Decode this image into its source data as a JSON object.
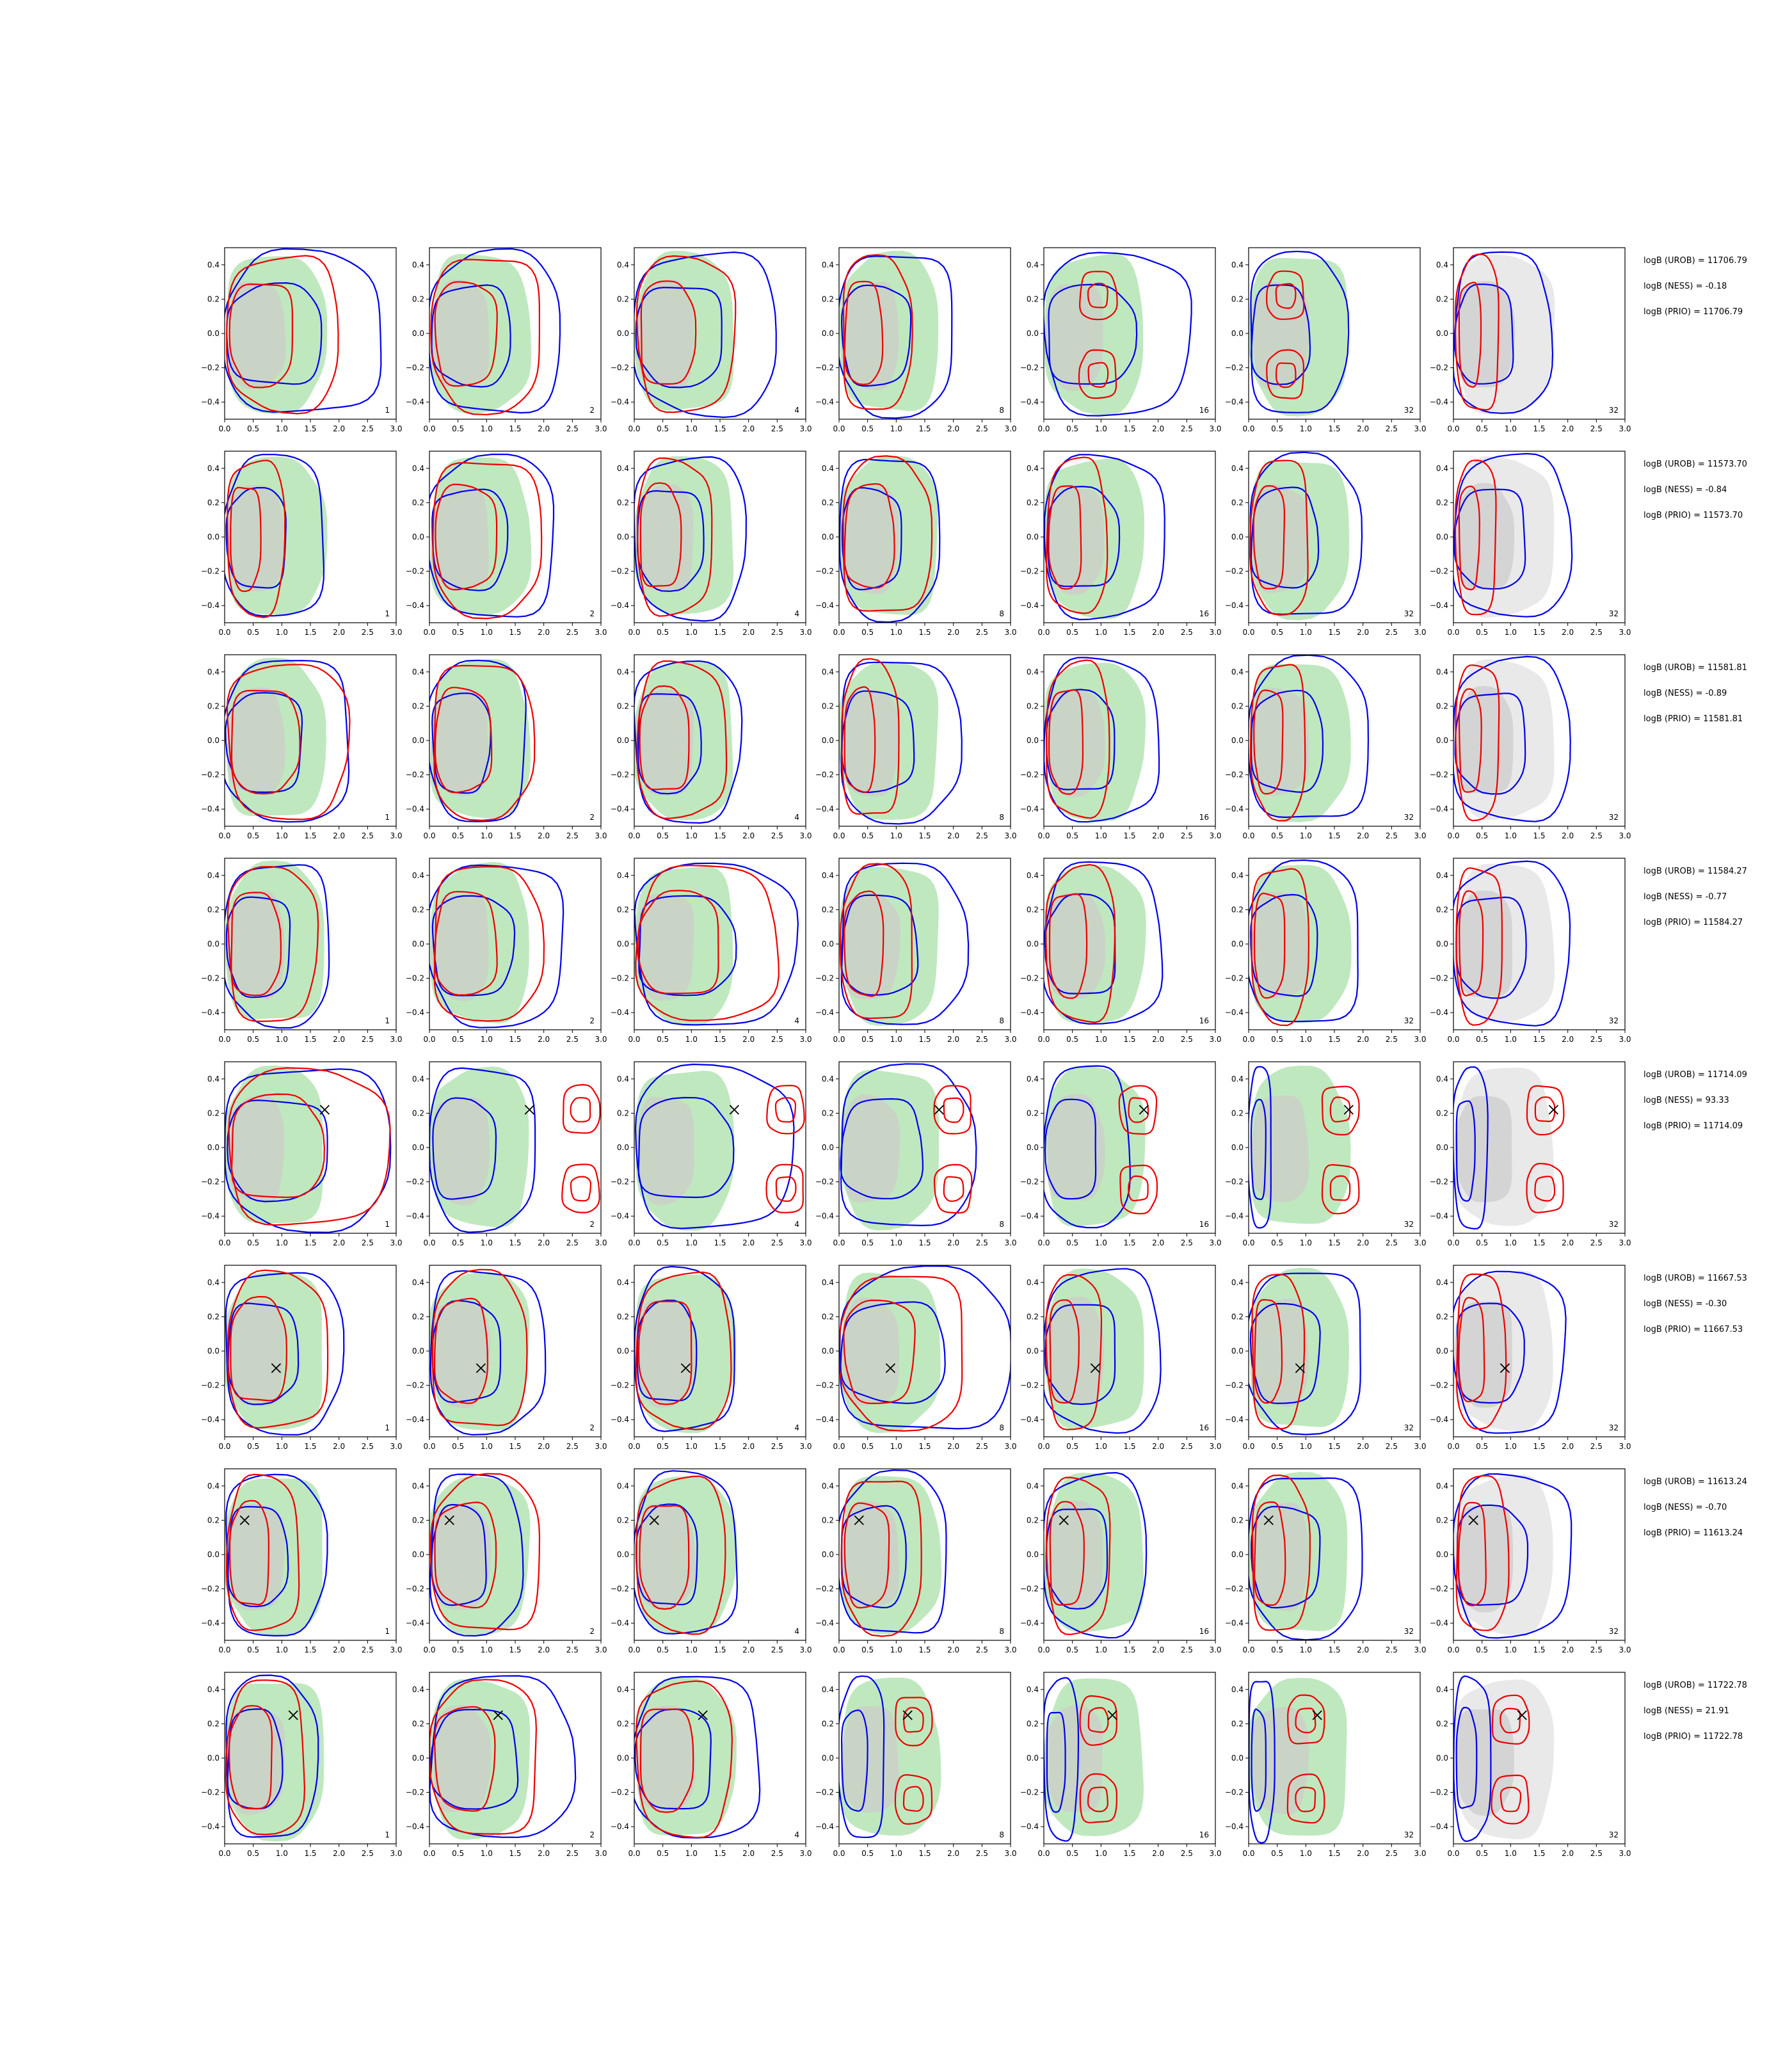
{
  "chart_data": {
    "type": "contour",
    "layout": {
      "rows": 8,
      "cols": 7
    },
    "xlim": [
      0.0,
      3.0
    ],
    "ylim": [
      -0.5,
      0.5
    ],
    "x_ticks": [
      "0.0",
      "0.5",
      "1.0",
      "1.5",
      "2.0",
      "2.5",
      "3.0"
    ],
    "y_ticks": [
      "0.4",
      "0.2",
      "0.0",
      "−0.2",
      "−0.4"
    ],
    "panel_labels": [
      "1",
      "2",
      "4",
      "8",
      "16",
      "32",
      "32"
    ],
    "colors": {
      "reference_fill_outer": "#bfe8bf",
      "reference_fill_inner": "#c9d4c6",
      "prior_fill_outer": "#e9e9e9",
      "prior_fill_inner": "#d4d4d4",
      "contour_blue": "#0000ee",
      "contour_red": "#ee0000",
      "truth_marker": "#000000"
    },
    "rows": [
      {
        "notes": [
          "logB (UROB) = 11706.79",
          "logB (NESS) = -0.18",
          "logB (PRIO) = 11706.79"
        ],
        "truth": null,
        "blue": [
          2.75,
          2.3,
          2.5,
          2.0,
          2.55,
          1.7,
          1.7
        ],
        "red": [
          2.0,
          1.95,
          1.75,
          1.25,
          1.3,
          1.0,
          0.8
        ],
        "red_mode": [
          "u",
          "u",
          "u",
          "u",
          "two",
          "two",
          "u"
        ]
      },
      {
        "notes": [
          "logB (UROB) = 11573.70",
          "logB (NESS) = -0.84",
          "logB (PRIO) = 11573.70"
        ],
        "truth": null,
        "blue": [
          1.75,
          2.2,
          1.95,
          1.75,
          2.1,
          1.95,
          2.05
        ],
        "red": [
          1.05,
          1.95,
          1.35,
          1.6,
          1.1,
          1.05,
          0.75
        ],
        "red_mode": [
          "u",
          "u",
          "u",
          "u",
          "u",
          "u",
          "u"
        ]
      },
      {
        "notes": [
          "logB (UROB) = 11581.81",
          "logB (NESS) = -0.89",
          "logB (PRIO) = 11581.81"
        ],
        "truth": null,
        "blue": [
          2.2,
          1.7,
          1.85,
          2.1,
          2.0,
          2.1,
          2.05
        ],
        "red": [
          2.15,
          1.8,
          1.6,
          1.05,
          1.15,
          1.0,
          0.8
        ],
        "red_mode": [
          "u",
          "u",
          "u",
          "u",
          "u",
          "u",
          "u"
        ]
      },
      {
        "notes": [
          "logB (UROB) = 11584.27",
          "logB (NESS) = -0.77",
          "logB (PRIO) = 11584.27"
        ],
        "truth": null,
        "blue": [
          1.85,
          2.35,
          2.8,
          2.2,
          2.05,
          1.95,
          2.05
        ],
        "red": [
          1.6,
          1.95,
          2.5,
          1.3,
          1.25,
          1.05,
          0.85
        ],
        "red_mode": [
          "u",
          "u",
          "u",
          "u",
          "u",
          "u",
          "u"
        ]
      },
      {
        "notes": [
          "logB (UROB) = 11714.09",
          "logB (NESS) = 93.33",
          "logB (PRIO) = 11714.09"
        ],
        "truth": [
          1.75,
          0.22
        ],
        "blue": [
          2.9,
          1.85,
          2.75,
          2.35,
          1.5,
          0.4,
          0.6
        ],
        "red": [
          2.85,
          3.0,
          3.0,
          2.35,
          2.0,
          1.95,
          1.95
        ],
        "red_mode": [
          "u",
          "two",
          "two",
          "two",
          "two",
          "two",
          "two"
        ]
      },
      {
        "notes": [
          "logB (UROB) = 11667.53",
          "logB (NESS) = -0.30",
          "logB (PRIO) = 11667.53"
        ],
        "truth": [
          0.9,
          -0.1
        ],
        "blue": [
          2.05,
          2.0,
          1.75,
          3.0,
          2.05,
          2.0,
          1.95
        ],
        "red": [
          1.8,
          1.7,
          1.7,
          2.2,
          1.0,
          0.95,
          0.9
        ],
        "red_mode": [
          "u",
          "u",
          "u",
          "u",
          "u",
          "u",
          "u"
        ]
      },
      {
        "notes": [
          "logB (UROB) = 11613.24",
          "logB (NESS) = -0.70",
          "logB (PRIO) = 11613.24"
        ],
        "truth": [
          0.35,
          0.2
        ],
        "blue": [
          1.75,
          1.6,
          1.8,
          1.9,
          1.8,
          2.0,
          2.05
        ],
        "red": [
          1.3,
          1.95,
          1.6,
          1.45,
          1.15,
          1.05,
          0.95
        ],
        "red_mode": [
          "u",
          "u",
          "u",
          "u",
          "u",
          "u",
          "u"
        ]
      },
      {
        "notes": [
          "logB (UROB) = 11722.78",
          "logB (NESS) = 21.91",
          "logB (PRIO) = 11722.78"
        ],
        "truth": [
          1.2,
          0.25
        ],
        "blue": [
          1.6,
          2.5,
          2.2,
          0.8,
          0.6,
          0.45,
          0.65
        ],
        "red": [
          1.4,
          1.9,
          1.7,
          1.65,
          1.3,
          1.35,
          1.35
        ],
        "red_mode": [
          "u",
          "u",
          "u",
          "two",
          "two",
          "two",
          "two"
        ]
      }
    ]
  }
}
